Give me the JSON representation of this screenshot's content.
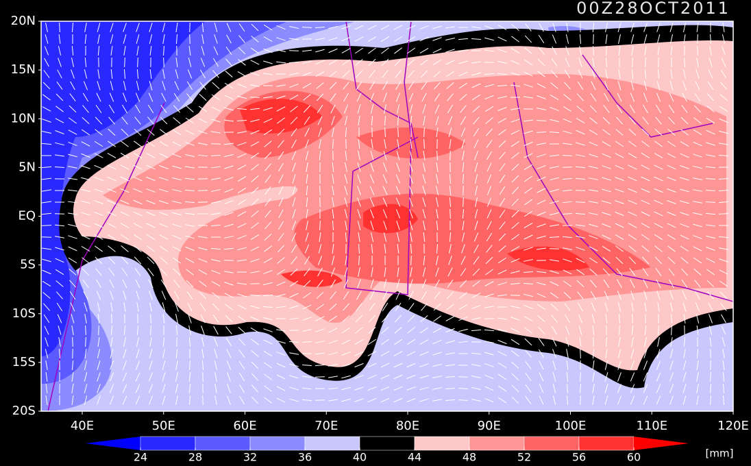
{
  "title": "00Z28OCT2011",
  "lat_labels": [
    "20N",
    "15N",
    "10N",
    "5N",
    "EQ",
    "5S",
    "10S",
    "15S",
    "20S"
  ],
  "lon_labels": [
    "40E",
    "50E",
    "60E",
    "70E",
    "80E",
    "90E",
    "100E",
    "110E",
    "120E"
  ],
  "colorbar": {
    "levels": [
      24,
      28,
      32,
      36,
      40,
      44,
      48,
      52,
      56,
      60
    ],
    "colors": [
      "#0000ff",
      "#2828ff",
      "#5a5aff",
      "#8c8cff",
      "#c8c8ff",
      "#000000",
      "#ffc8c8",
      "#ff9696",
      "#ff6464",
      "#ff3232",
      "#ff0000"
    ],
    "unit": "[mm]"
  }
}
